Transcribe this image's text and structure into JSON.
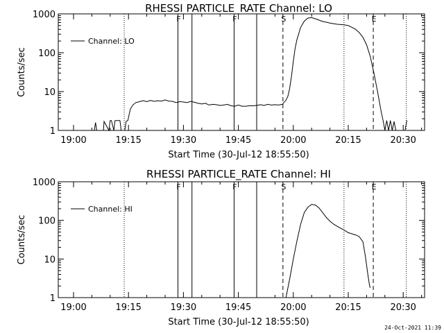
{
  "timestamp": "24-Oct-2021 11:39",
  "chart_data": [
    {
      "type": "line",
      "title": "RHESSI PARTICLE_RATE Channel: LO",
      "xlabel": "Start Time (30-Jul-12 18:55:50)",
      "ylabel": "Counts/sec",
      "yscale": "log",
      "xlim": [
        "18:55:50",
        "20:35:50"
      ],
      "ylim": [
        1,
        1000
      ],
      "grid": false,
      "legend_position": "upper-left",
      "x_ticks": [
        "19:00",
        "19:15",
        "19:30",
        "19:45",
        "20:00",
        "20:15",
        "20:30"
      ],
      "y_ticks": [
        "1",
        "10",
        "100",
        "1000"
      ],
      "markers": [
        {
          "label": "F",
          "time": "19:28:30",
          "style": "solid"
        },
        {
          "label": "",
          "time": "19:32:20",
          "style": "solid"
        },
        {
          "label": "F",
          "time": "19:43:50",
          "style": "solid"
        },
        {
          "label": "",
          "time": "19:50:00",
          "style": "solid"
        },
        {
          "label": "S",
          "time": "19:57:10",
          "style": "dashed"
        },
        {
          "label": "E",
          "time": "20:21:50",
          "style": "dashed"
        },
        {
          "label": "",
          "time": "19:13:50",
          "style": "dotted"
        },
        {
          "label": "",
          "time": "20:13:50",
          "style": "dotted"
        },
        {
          "label": "",
          "time": "20:30:50",
          "style": "dotted"
        }
      ],
      "series": [
        {
          "name": "Channel: LO",
          "x": [
            "19:05:40",
            "19:06:00",
            "19:06:20",
            "19:08:10",
            "19:08:20",
            "19:09:40",
            "19:10:00",
            "19:10:20",
            "19:11:00",
            "19:11:20",
            "19:11:50",
            "19:12:40",
            "19:13:00",
            "19:14:00",
            "19:14:20",
            "19:14:50",
            "19:15:30",
            "19:16:10",
            "19:17:00",
            "19:18:00",
            "19:19:00",
            "19:20:00",
            "19:21:00",
            "19:22:00",
            "19:23:00",
            "19:24:00",
            "19:25:00",
            "19:26:00",
            "19:27:00",
            "19:28:00",
            "19:29:00",
            "19:30:00",
            "19:31:00",
            "19:32:00",
            "19:33:00",
            "19:34:00",
            "19:35:00",
            "19:36:00",
            "19:37:00",
            "19:38:00",
            "19:39:00",
            "19:40:00",
            "19:41:00",
            "19:42:00",
            "19:43:00",
            "19:44:00",
            "19:45:00",
            "19:46:00",
            "19:47:00",
            "19:48:00",
            "19:49:00",
            "19:50:00",
            "19:51:00",
            "19:52:00",
            "19:53:00",
            "19:54:00",
            "19:55:00",
            "19:56:00",
            "19:57:00",
            "19:58:00",
            "19:58:30",
            "19:59:00",
            "19:59:30",
            "20:00:00",
            "20:00:30",
            "20:01:00",
            "20:02:00",
            "20:03:00",
            "20:04:00",
            "20:05:00",
            "20:06:00",
            "20:07:00",
            "20:08:00",
            "20:09:00",
            "20:10:00",
            "20:11:00",
            "20:12:00",
            "20:13:00",
            "20:14:00",
            "20:15:00",
            "20:16:00",
            "20:17:00",
            "20:18:00",
            "20:19:00",
            "20:20:00",
            "20:21:00",
            "20:22:00",
            "20:23:00",
            "20:24:00",
            "20:24:30",
            "20:25:00",
            "20:25:30",
            "20:26:00",
            "20:26:30",
            "20:27:00",
            "20:27:30",
            "20:28:00",
            "20:30:30",
            "20:31:00"
          ],
          "y": [
            1,
            1.6,
            1,
            1,
            1.7,
            1,
            1.8,
            1.8,
            1,
            1.8,
            1.8,
            1.8,
            1,
            1,
            1.7,
            1.8,
            3.5,
            4.5,
            5.2,
            5.5,
            5.8,
            5.5,
            5.9,
            5.6,
            5.8,
            5.7,
            6.1,
            5.7,
            5.6,
            5.2,
            5.5,
            5.4,
            5.2,
            5.6,
            5.3,
            5.0,
            4.8,
            5.0,
            4.5,
            4.7,
            4.6,
            4.4,
            4.5,
            4.7,
            4.3,
            4.2,
            4.5,
            4.2,
            4.2,
            4.3,
            4.3,
            4.4,
            4.6,
            4.4,
            4.7,
            4.5,
            4.6,
            4.5,
            4.7,
            6,
            7.5,
            12,
            25,
            60,
            130,
            220,
            450,
            650,
            780,
            800,
            750,
            690,
            640,
            610,
            580,
            560,
            540,
            530,
            520,
            500,
            450,
            400,
            330,
            250,
            160,
            80,
            30,
            10,
            3,
            1.8,
            1,
            1.8,
            1,
            1.8,
            1,
            1.7,
            1,
            1,
            1.8
          ]
        }
      ]
    },
    {
      "type": "line",
      "title": "RHESSI PARTICLE_RATE Channel: HI",
      "xlabel": "Start Time (30-Jul-12 18:55:50)",
      "ylabel": "Counts/sec",
      "yscale": "log",
      "xlim": [
        "18:55:50",
        "20:35:50"
      ],
      "ylim": [
        1,
        1000
      ],
      "grid": false,
      "legend_position": "upper-left",
      "x_ticks": [
        "19:00",
        "19:15",
        "19:30",
        "19:45",
        "20:00",
        "20:15",
        "20:30"
      ],
      "y_ticks": [
        "1",
        "10",
        "100",
        "1000"
      ],
      "markers": [
        {
          "label": "F",
          "time": "19:28:30",
          "style": "solid"
        },
        {
          "label": "",
          "time": "19:32:20",
          "style": "solid"
        },
        {
          "label": "F",
          "time": "19:43:50",
          "style": "solid"
        },
        {
          "label": "",
          "time": "19:50:00",
          "style": "solid"
        },
        {
          "label": "S",
          "time": "19:57:10",
          "style": "dashed"
        },
        {
          "label": "E",
          "time": "20:21:50",
          "style": "dashed"
        },
        {
          "label": "",
          "time": "19:13:50",
          "style": "dotted"
        },
        {
          "label": "",
          "time": "20:13:50",
          "style": "dotted"
        },
        {
          "label": "",
          "time": "20:30:50",
          "style": "dotted"
        }
      ],
      "series": [
        {
          "name": "Channel: HI",
          "x": [
            "19:58:00",
            "19:59:00",
            "20:00:00",
            "20:01:00",
            "20:02:00",
            "20:03:00",
            "20:04:00",
            "20:05:00",
            "20:06:00",
            "20:07:00",
            "20:08:00",
            "20:09:00",
            "20:10:00",
            "20:11:00",
            "20:12:00",
            "20:13:00",
            "20:14:00",
            "20:15:00",
            "20:16:00",
            "20:17:00",
            "20:18:00",
            "20:19:00",
            "20:19:40",
            "20:20:20",
            "20:20:50",
            "20:21:00"
          ],
          "y": [
            1,
            3,
            10,
            30,
            80,
            160,
            220,
            260,
            250,
            210,
            160,
            120,
            95,
            80,
            70,
            62,
            55,
            48,
            45,
            42,
            38,
            28,
            12,
            4,
            2,
            1.8
          ]
        }
      ]
    }
  ]
}
